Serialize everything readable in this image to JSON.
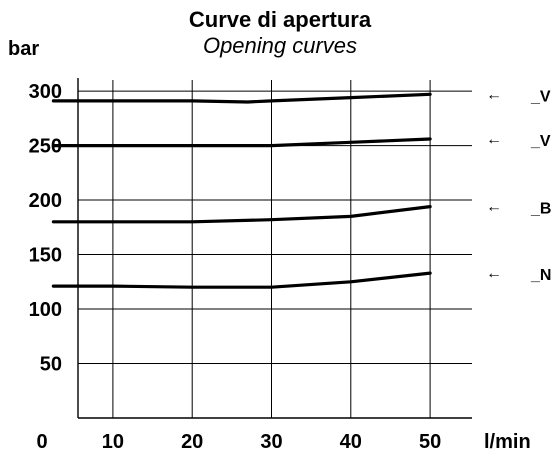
{
  "chart_data": {
    "type": "line",
    "title": "Curve di apertura",
    "subtitle": "Opening curves",
    "ylabel": "bar",
    "xunit": "l/min",
    "x_origin_label": "0",
    "x_ticks": [
      10,
      20,
      30,
      40,
      50
    ],
    "y_ticks": [
      50,
      100,
      150,
      200,
      250,
      300
    ],
    "xlim": [
      0,
      50
    ],
    "ylim": [
      0,
      312
    ],
    "grid": "vertical",
    "colors": {
      "line": "#000000",
      "grid": "#000000",
      "background": "#ffffff"
    },
    "series": [
      {
        "name": "_V",
        "x": [
          2.5,
          10,
          20,
          27,
          30,
          40,
          50
        ],
        "y": [
          291,
          291,
          291,
          290,
          291,
          294,
          297
        ]
      },
      {
        "name": "_V",
        "x": [
          2.5,
          10,
          20,
          30,
          40,
          50
        ],
        "y": [
          250,
          250,
          250,
          250,
          253,
          256
        ]
      },
      {
        "name": "_B",
        "x": [
          2.5,
          10,
          20,
          30,
          40,
          50
        ],
        "y": [
          180,
          180,
          180,
          182,
          185,
          194
        ]
      },
      {
        "name": "_N",
        "x": [
          2.5,
          10,
          20,
          30,
          40,
          50
        ],
        "y": [
          121,
          121,
          120,
          120,
          125,
          133
        ]
      }
    ],
    "arrow_glyph": "←"
  }
}
